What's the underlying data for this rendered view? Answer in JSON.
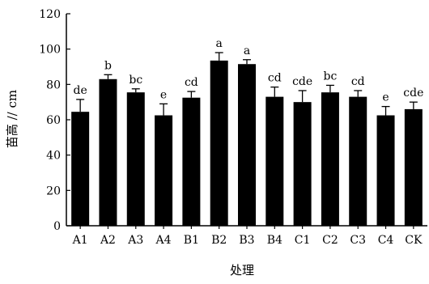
{
  "chart_data": {
    "type": "bar",
    "title": "",
    "xlabel": "处理",
    "ylabel": "苗高 // cm",
    "ylim": [
      0,
      120
    ],
    "yticks": [
      0,
      20,
      40,
      60,
      80,
      100,
      120
    ],
    "grid": false,
    "legend": "none",
    "bar_color": "#000000",
    "categories": [
      "A1",
      "A2",
      "A3",
      "A4",
      "B1",
      "B2",
      "B3",
      "B4",
      "C1",
      "C2",
      "C3",
      "C4",
      "CK"
    ],
    "values": [
      64.5,
      83,
      75.5,
      62.5,
      72.5,
      93.5,
      91.5,
      73,
      70,
      75.5,
      73,
      62.5,
      66
    ],
    "errors": [
      7,
      2.5,
      2,
      6.5,
      3.5,
      4.5,
      2.5,
      5.5,
      6.5,
      4,
      3.5,
      5,
      4
    ],
    "significance": [
      "de",
      "b",
      "bc",
      "e",
      "cd",
      "a",
      "a",
      "cd",
      "cde",
      "bc",
      "cd",
      "e",
      "cde"
    ]
  }
}
